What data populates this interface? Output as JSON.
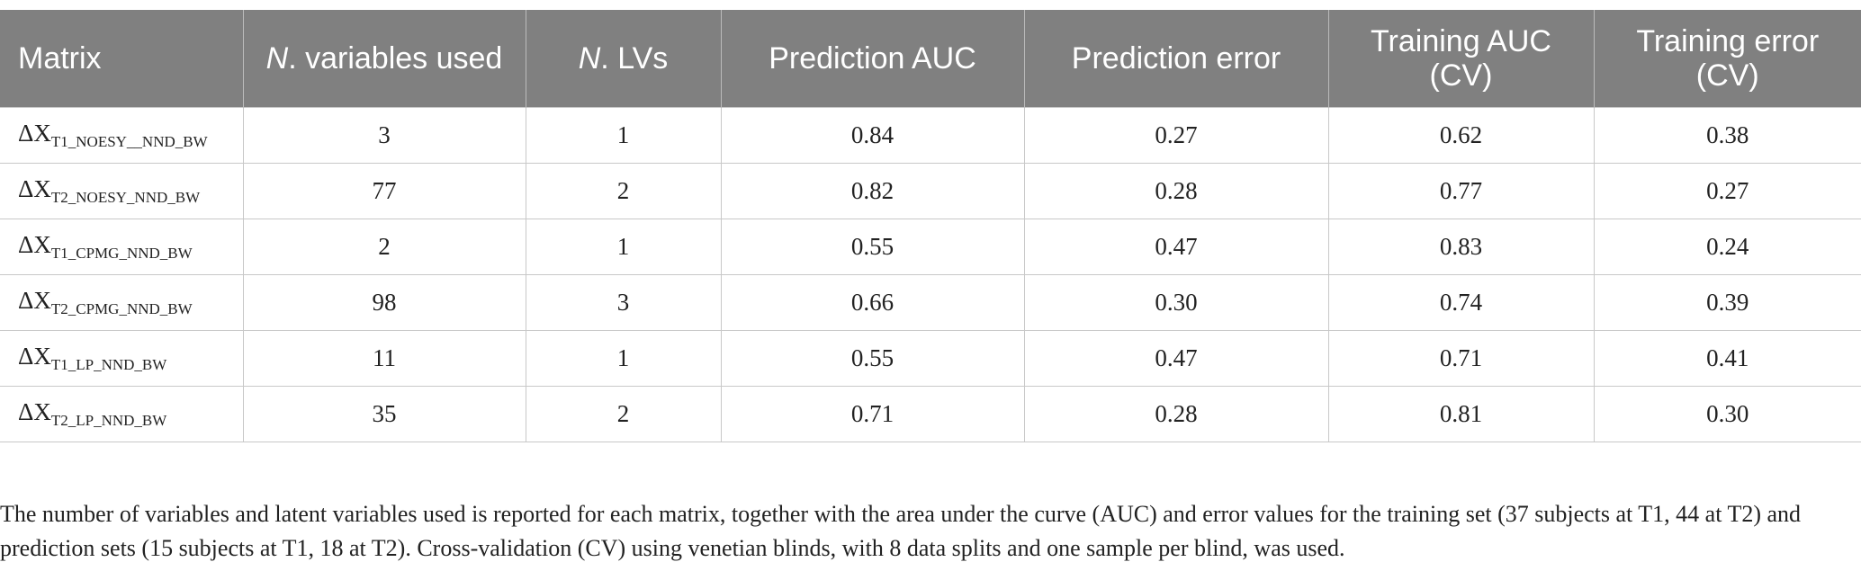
{
  "table": {
    "header": [
      {
        "text": "Matrix"
      },
      {
        "italic": "N",
        "text": ". variables used"
      },
      {
        "italic": "N",
        "text": ". LVs"
      },
      {
        "text": "Prediction AUC"
      },
      {
        "text": "Prediction error"
      },
      {
        "text": "Training AUC (CV)"
      },
      {
        "text": "Training error (CV)"
      }
    ],
    "rows": [
      [
        {
          "base": "ΔX",
          "sub": "T1_NOESY__NND_BW"
        },
        "3",
        "1",
        "0.84",
        "0.27",
        "0.62",
        "0.38"
      ],
      [
        {
          "base": "ΔX",
          "sub": "T2_NOESY_NND_BW"
        },
        "77",
        "2",
        "0.82",
        "0.28",
        "0.77",
        "0.27"
      ],
      [
        {
          "base": "ΔX",
          "sub": "T1_CPMG_NND_BW"
        },
        "2",
        "1",
        "0.55",
        "0.47",
        "0.83",
        "0.24"
      ],
      [
        {
          "base": "ΔX",
          "sub": "T2_CPMG_NND_BW"
        },
        "98",
        "3",
        "0.66",
        "0.30",
        "0.74",
        "0.39"
      ],
      [
        {
          "base": "ΔX",
          "sub": "T1_LP_NND_BW"
        },
        "11",
        "1",
        "0.55",
        "0.47",
        "0.71",
        "0.41"
      ],
      [
        {
          "base": "ΔX",
          "sub": "T2_LP_NND_BW"
        },
        "35",
        "2",
        "0.71",
        "0.28",
        "0.81",
        "0.30"
      ]
    ]
  },
  "footnote": "The number of variables and latent variables used is reported for each matrix, together with the area under the curve (AUC) and error values for the training set (37 subjects at T1, 44 at T2) and prediction sets (15 subjects at T1, 18 at T2). Cross-validation (CV) using venetian blinds, with 8 data splits and one sample per blind, was used."
}
